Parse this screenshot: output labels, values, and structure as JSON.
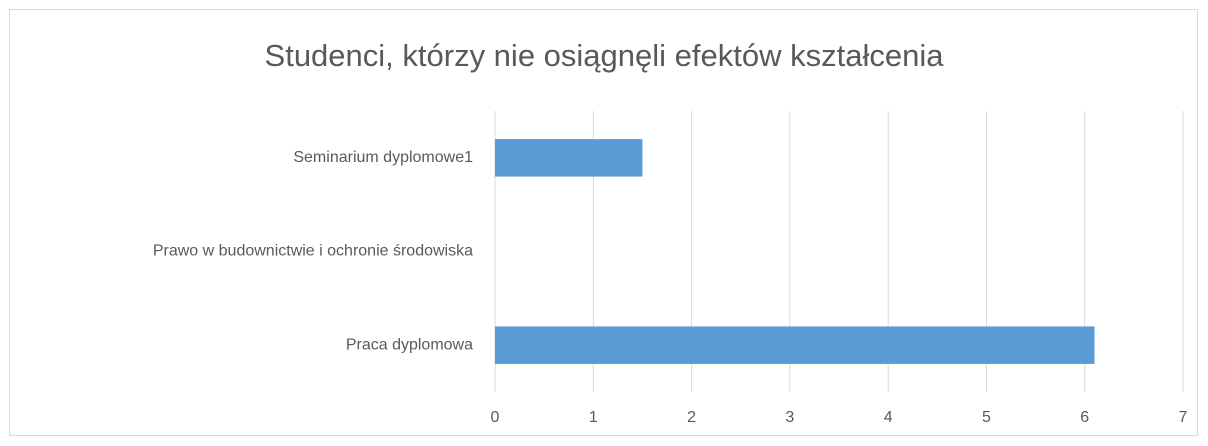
{
  "chart_data": {
    "type": "bar",
    "orientation": "horizontal",
    "title": "Studenci, którzy nie osiągnęli efektów kształcenia",
    "categories": [
      "Seminarium dyplomowe1",
      "Prawo w budownictwie i ochronie środowiska",
      "Praca dyplomowa"
    ],
    "values": [
      1.5,
      0,
      6.1
    ],
    "color": "#5b9bd5",
    "xlim": [
      0,
      7
    ],
    "xticks": [
      0,
      1,
      2,
      3,
      4,
      5,
      6,
      7
    ],
    "grid": true
  }
}
